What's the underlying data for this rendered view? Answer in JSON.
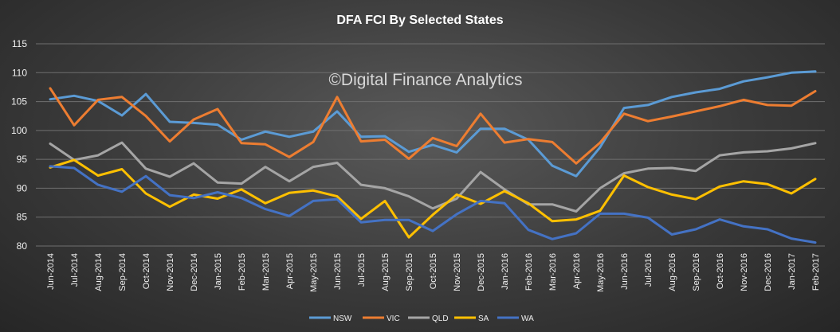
{
  "chart_data": {
    "type": "line",
    "title": "DFA FCI By Selected States",
    "watermark": "©Digital Finance Analytics",
    "xlabel": "",
    "ylabel": "",
    "ylim": [
      80,
      115
    ],
    "yticks": [
      "80",
      "85",
      "90",
      "95",
      "100",
      "105",
      "110",
      "115"
    ],
    "grid": true,
    "legend_position": "bottom",
    "categories": [
      "Jun-2014",
      "Jul-2014",
      "Aug-2014",
      "Sep-2014",
      "Oct-2014",
      "Nov-2014",
      "Dec-2014",
      "Jan-2015",
      "Feb-2015",
      "Mar-2015",
      "Apr-2015",
      "May-2015",
      "Jun-2015",
      "Jul-2015",
      "Aug-2015",
      "Sep-2015",
      "Oct-2015",
      "Nov-2015",
      "Dec-2015",
      "Jan-2016",
      "Feb-2016",
      "Mar-2016",
      "Apr-2016",
      "May-2016",
      "Jun-2016",
      "Jul-2016",
      "Aug-2016",
      "Sep-2016",
      "Oct-2016",
      "Nov-2016",
      "Dec-2016",
      "Jan-2017",
      "Feb-2017"
    ],
    "series": [
      {
        "name": "NSW",
        "color": "#5b9bd5",
        "values": [
          105.4,
          106.0,
          105.1,
          102.6,
          106.3,
          101.5,
          101.3,
          101.0,
          98.4,
          99.8,
          98.9,
          99.8,
          103.3,
          98.9,
          99.0,
          96.3,
          97.5,
          96.2,
          100.3,
          100.3,
          98.4,
          93.9,
          92.1,
          97.1,
          103.9,
          104.4,
          105.8,
          106.6,
          107.2,
          108.5,
          109.2,
          110.0,
          110.2
        ]
      },
      {
        "name": "VIC",
        "color": "#ed7d31",
        "values": [
          107.3,
          100.9,
          105.3,
          105.8,
          102.5,
          98.1,
          101.9,
          103.7,
          97.8,
          97.6,
          95.4,
          98.0,
          105.8,
          98.1,
          98.4,
          95.1,
          98.7,
          97.3,
          102.9,
          97.9,
          98.5,
          98.0,
          94.3,
          97.9,
          102.9,
          101.6,
          102.4,
          103.3,
          104.2,
          105.3,
          104.4,
          104.3,
          106.8
        ]
      },
      {
        "name": "QLD",
        "color": "#a5a5a5",
        "values": [
          97.7,
          94.9,
          95.7,
          97.9,
          93.4,
          92.0,
          94.3,
          91.0,
          90.8,
          93.7,
          91.2,
          93.7,
          94.4,
          90.6,
          90.0,
          88.6,
          86.5,
          88.2,
          92.8,
          89.8,
          87.2,
          87.2,
          86.0,
          90.0,
          92.6,
          93.4,
          93.5,
          93.0,
          95.7,
          96.2,
          96.4,
          96.9,
          97.8
        ]
      },
      {
        "name": "SA",
        "color": "#ffc000",
        "values": [
          93.6,
          94.9,
          92.2,
          93.3,
          89.1,
          86.8,
          88.9,
          88.2,
          89.8,
          87.4,
          89.2,
          89.6,
          88.6,
          84.7,
          87.8,
          81.5,
          85.4,
          88.9,
          87.3,
          89.5,
          87.4,
          84.3,
          84.6,
          86.1,
          92.2,
          90.2,
          88.9,
          88.1,
          90.3,
          91.2,
          90.7,
          89.1,
          91.6
        ]
      },
      {
        "name": "WA",
        "color": "#4472c4",
        "values": [
          93.8,
          93.5,
          90.6,
          89.4,
          92.1,
          88.8,
          88.3,
          89.3,
          88.3,
          86.4,
          85.2,
          87.8,
          88.1,
          84.1,
          84.5,
          84.5,
          82.6,
          85.5,
          87.8,
          87.4,
          82.8,
          81.2,
          82.2,
          85.6,
          85.6,
          84.9,
          82.0,
          82.9,
          84.6,
          83.4,
          82.9,
          81.3,
          80.6
        ]
      }
    ]
  }
}
